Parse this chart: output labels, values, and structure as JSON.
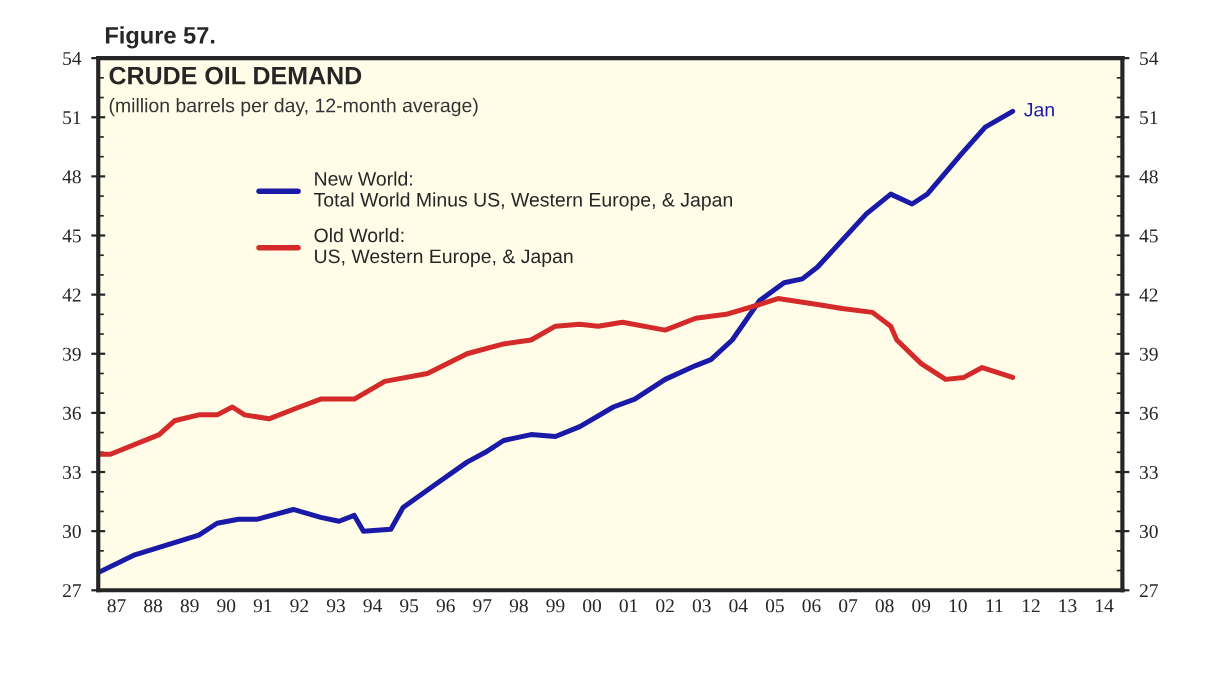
{
  "chart_data": {
    "type": "line",
    "title": "CRUDE OIL DEMAND",
    "subtitle": "(million barrels per day, 12-month average)",
    "annotations": [
      "Figure 57.",
      {
        "text": "Jan",
        "x": "2012-01",
        "y": 51.3
      }
    ],
    "series": [
      {
        "name": "New World:\nTotal World Minus US, Western Europe, & Japan",
        "color": "#1a1aa8",
        "x": [
          "1987-01",
          "1988-01",
          "1989-10",
          "1990-04",
          "1990-11",
          "1991-05",
          "1992-05",
          "1993-02",
          "1993-08",
          "1994-01",
          "1994-04",
          "1995-01",
          "1995-05",
          "1996-03",
          "1997-02",
          "1997-08",
          "1998-02",
          "1998-11",
          "1999-07",
          "2000-03",
          "2001-02",
          "2001-09",
          "2002-07",
          "2003-05",
          "2003-10",
          "2004-05",
          "2005-02",
          "2005-10",
          "2006-04",
          "2006-09",
          "2008-01",
          "2008-09",
          "2009-04",
          "2009-09",
          "2010-08",
          "2011-04",
          "2012-01"
        ],
        "values": [
          27.9,
          28.8,
          29.8,
          30.4,
          30.6,
          30.6,
          31.1,
          30.7,
          30.5,
          30.8,
          30.0,
          30.1,
          31.2,
          32.3,
          33.5,
          34.0,
          34.6,
          34.9,
          34.8,
          35.3,
          36.3,
          36.7,
          37.7,
          38.4,
          38.7,
          39.7,
          41.7,
          42.6,
          42.8,
          43.4,
          46.1,
          47.1,
          46.6,
          47.1,
          49.1,
          50.5,
          51.3
        ]
      },
      {
        "name": "Old World:\nUS, Western Europe, & Japan",
        "color": "#d42a2a",
        "x": [
          "1987-01",
          "1987-05",
          "1988-09",
          "1989-02",
          "1989-10",
          "1990-04",
          "1990-09",
          "1991-01",
          "1991-09",
          "1992-07",
          "1993-02",
          "1994-01",
          "1994-11",
          "1996-01",
          "1997-02",
          "1998-02",
          "1998-11",
          "1999-07",
          "2000-03",
          "2000-09",
          "2001-05",
          "2002-07",
          "2003-05",
          "2004-03",
          "2005-02",
          "2005-08",
          "2006-09",
          "2007-05",
          "2008-03",
          "2008-09",
          "2008-11",
          "2009-07",
          "2010-03",
          "2010-09",
          "2011-03",
          "2012-01"
        ],
        "values": [
          33.9,
          33.9,
          34.9,
          35.6,
          35.9,
          35.9,
          36.3,
          35.9,
          35.7,
          36.3,
          36.7,
          36.7,
          37.6,
          38.0,
          39.0,
          39.5,
          39.7,
          40.4,
          40.5,
          40.4,
          40.6,
          40.2,
          40.8,
          41.0,
          41.5,
          41.8,
          41.5,
          41.3,
          41.1,
          40.4,
          39.7,
          38.5,
          37.7,
          37.8,
          38.3,
          37.8
        ]
      }
    ],
    "xlim": [
      "1987-01",
      "2015-01"
    ],
    "xticks": [
      {
        "value": "1987-07",
        "label": "87"
      },
      {
        "value": "1988-07",
        "label": "88"
      },
      {
        "value": "1989-07",
        "label": "89"
      },
      {
        "value": "1990-07",
        "label": "90"
      },
      {
        "value": "1991-07",
        "label": "91"
      },
      {
        "value": "1992-07",
        "label": "92"
      },
      {
        "value": "1993-07",
        "label": "93"
      },
      {
        "value": "1994-07",
        "label": "94"
      },
      {
        "value": "1995-07",
        "label": "95"
      },
      {
        "value": "1996-07",
        "label": "96"
      },
      {
        "value": "1997-07",
        "label": "97"
      },
      {
        "value": "1998-07",
        "label": "98"
      },
      {
        "value": "1999-07",
        "label": "99"
      },
      {
        "value": "2000-07",
        "label": "00"
      },
      {
        "value": "2001-07",
        "label": "01"
      },
      {
        "value": "2002-07",
        "label": "02"
      },
      {
        "value": "2003-07",
        "label": "03"
      },
      {
        "value": "2004-07",
        "label": "04"
      },
      {
        "value": "2005-07",
        "label": "05"
      },
      {
        "value": "2006-07",
        "label": "06"
      },
      {
        "value": "2007-07",
        "label": "07"
      },
      {
        "value": "2008-07",
        "label": "08"
      },
      {
        "value": "2009-07",
        "label": "09"
      },
      {
        "value": "2010-07",
        "label": "10"
      },
      {
        "value": "2011-07",
        "label": "11"
      },
      {
        "value": "2012-07",
        "label": "12"
      },
      {
        "value": "2013-07",
        "label": "13"
      },
      {
        "value": "2014-07",
        "label": "14"
      }
    ],
    "ylim": [
      27,
      54
    ],
    "yticks": [
      27,
      30,
      33,
      36,
      39,
      42,
      45,
      48,
      51,
      54
    ],
    "y2lim": [
      27,
      54
    ],
    "y2ticks": [
      27,
      30,
      33,
      36,
      39,
      42,
      45,
      48,
      51,
      54
    ],
    "legend": "top left",
    "grid": false,
    "marker": "none",
    "line_style": "solid"
  }
}
